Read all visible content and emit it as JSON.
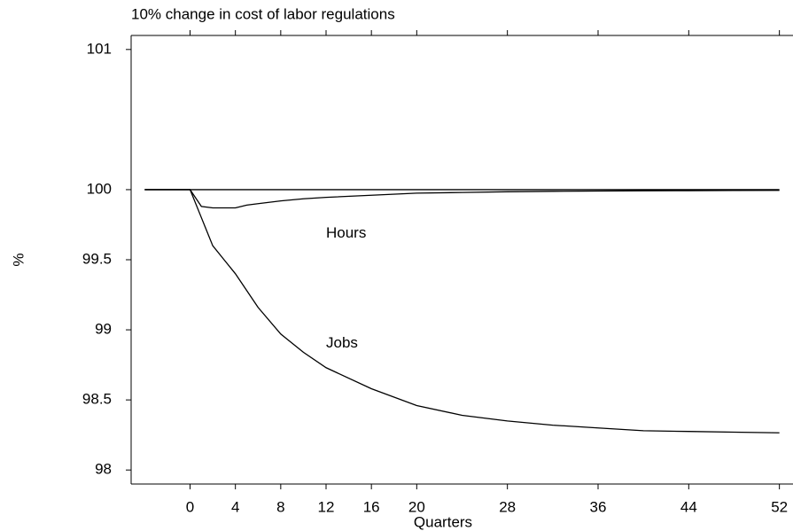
{
  "chart_data": {
    "type": "line",
    "title": "10% change in cost of labor regulations",
    "x_label": "Quarters",
    "y_label": "%",
    "x": [
      -4,
      0,
      1,
      2,
      3,
      4,
      5,
      6,
      8,
      10,
      12,
      16,
      20,
      24,
      28,
      32,
      36,
      40,
      44,
      48,
      52
    ],
    "series": [
      {
        "color": "#000000",
        "values": [
          100,
          100,
          100,
          100,
          100,
          100,
          100,
          100,
          100,
          100,
          100,
          100,
          100,
          100,
          100,
          100,
          100,
          100,
          100,
          100,
          100
        ]
      },
      {
        "name": "Hours",
        "color": "#000000",
        "values": [
          100,
          100,
          99.88,
          99.87,
          99.87,
          99.87,
          99.89,
          99.9,
          99.92,
          99.935,
          99.945,
          99.96,
          99.975,
          99.98,
          99.985,
          99.988,
          99.99,
          99.992,
          99.993,
          99.994,
          99.995
        ]
      },
      {
        "name": "Jobs",
        "color": "#000000",
        "values": [
          100,
          100,
          99.8,
          99.6,
          99.5,
          99.4,
          99.28,
          99.16,
          98.97,
          98.84,
          98.73,
          98.58,
          98.46,
          98.39,
          98.35,
          98.32,
          98.3,
          98.28,
          98.275,
          98.27,
          98.265
        ]
      }
    ],
    "xlim": [
      -5.2,
      53.2
    ],
    "ylim": [
      97.9,
      101.1
    ],
    "xticks": [
      0,
      4,
      8,
      12,
      16,
      20,
      28,
      36,
      44,
      52
    ],
    "yticks": [
      98,
      98.5,
      99,
      99.5,
      100,
      101
    ],
    "grid": false
  }
}
